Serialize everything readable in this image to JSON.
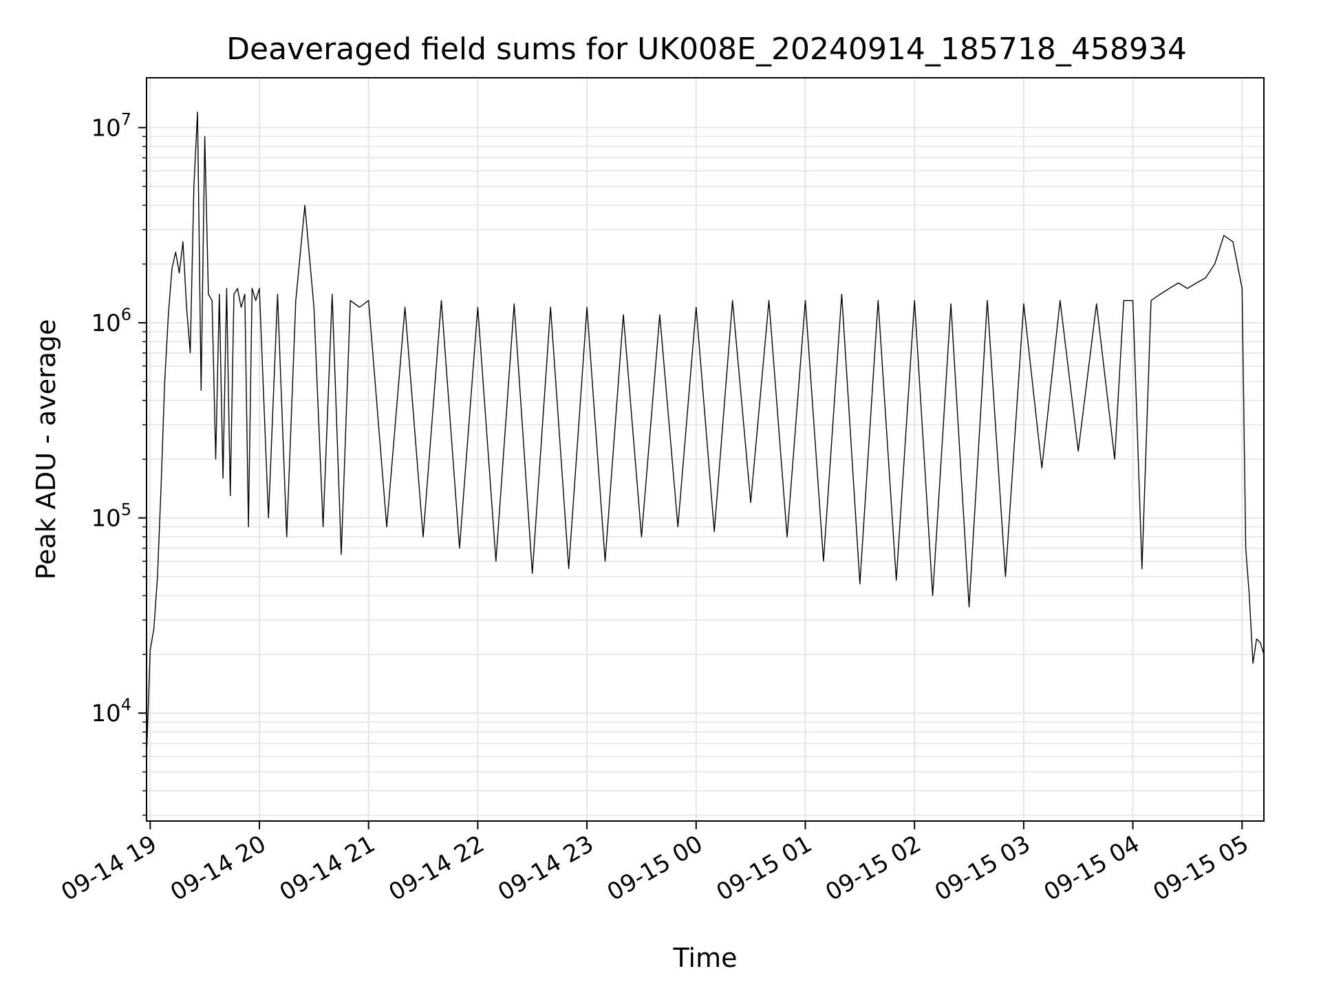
{
  "chart_data": {
    "type": "line",
    "title": "Deaveraged field sums for UK008E_20240914_185718_458934",
    "xlabel": "Time",
    "ylabel": "Peak ADU - average",
    "yscale": "log",
    "ylim": [
      2800,
      18000000
    ],
    "xlim": [
      "2024-09-14 18:58",
      "2024-09-15 05:12"
    ],
    "grid": true,
    "x_ticks": [
      {
        "label": "09-14 19",
        "time": "2024-09-14 19:00"
      },
      {
        "label": "09-14 20",
        "time": "2024-09-14 20:00"
      },
      {
        "label": "09-14 21",
        "time": "2024-09-14 21:00"
      },
      {
        "label": "09-14 22",
        "time": "2024-09-14 22:00"
      },
      {
        "label": "09-14 23",
        "time": "2024-09-14 23:00"
      },
      {
        "label": "09-15 00",
        "time": "2024-09-15 00:00"
      },
      {
        "label": "09-15 01",
        "time": "2024-09-15 01:00"
      },
      {
        "label": "09-15 02",
        "time": "2024-09-15 02:00"
      },
      {
        "label": "09-15 03",
        "time": "2024-09-15 03:00"
      },
      {
        "label": "09-15 04",
        "time": "2024-09-15 04:00"
      },
      {
        "label": "09-15 05",
        "time": "2024-09-15 05:00"
      }
    ],
    "y_ticks": [
      {
        "base": "10",
        "exp": "4",
        "value": 10000
      },
      {
        "base": "10",
        "exp": "5",
        "value": 100000
      },
      {
        "base": "10",
        "exp": "6",
        "value": 1000000
      },
      {
        "base": "10",
        "exp": "7",
        "value": 10000000
      }
    ],
    "series_color": "#000000",
    "series": [
      {
        "x": [
          "2024-09-14 18:58",
          "2024-09-14 19:00",
          "2024-09-14 19:02",
          "2024-09-14 19:04",
          "2024-09-14 19:06",
          "2024-09-14 19:08",
          "2024-09-14 19:10",
          "2024-09-14 19:12",
          "2024-09-14 19:14",
          "2024-09-14 19:16",
          "2024-09-14 19:18",
          "2024-09-14 19:20",
          "2024-09-14 19:22",
          "2024-09-14 19:24",
          "2024-09-14 19:26",
          "2024-09-14 19:28",
          "2024-09-14 19:30",
          "2024-09-14 19:32",
          "2024-09-14 19:34",
          "2024-09-14 19:36",
          "2024-09-14 19:38",
          "2024-09-14 19:40",
          "2024-09-14 19:42",
          "2024-09-14 19:44",
          "2024-09-14 19:46",
          "2024-09-14 19:48",
          "2024-09-14 19:50",
          "2024-09-14 19:52",
          "2024-09-14 19:54",
          "2024-09-14 19:56",
          "2024-09-14 19:58",
          "2024-09-14 20:00",
          "2024-09-14 20:05",
          "2024-09-14 20:10",
          "2024-09-14 20:15",
          "2024-09-14 20:20",
          "2024-09-14 20:25",
          "2024-09-14 20:30",
          "2024-09-14 20:35",
          "2024-09-14 20:40",
          "2024-09-14 20:45",
          "2024-09-14 20:50",
          "2024-09-14 20:55",
          "2024-09-14 21:00",
          "2024-09-14 21:10",
          "2024-09-14 21:20",
          "2024-09-14 21:30",
          "2024-09-14 21:40",
          "2024-09-14 21:50",
          "2024-09-14 22:00",
          "2024-09-14 22:10",
          "2024-09-14 22:20",
          "2024-09-14 22:30",
          "2024-09-14 22:40",
          "2024-09-14 22:50",
          "2024-09-14 23:00",
          "2024-09-14 23:10",
          "2024-09-14 23:20",
          "2024-09-14 23:30",
          "2024-09-14 23:40",
          "2024-09-14 23:50",
          "2024-09-15 00:00",
          "2024-09-15 00:10",
          "2024-09-15 00:20",
          "2024-09-15 00:30",
          "2024-09-15 00:40",
          "2024-09-15 00:50",
          "2024-09-15 01:00",
          "2024-09-15 01:10",
          "2024-09-15 01:20",
          "2024-09-15 01:30",
          "2024-09-15 01:40",
          "2024-09-15 01:50",
          "2024-09-15 02:00",
          "2024-09-15 02:10",
          "2024-09-15 02:20",
          "2024-09-15 02:30",
          "2024-09-15 02:40",
          "2024-09-15 02:50",
          "2024-09-15 03:00",
          "2024-09-15 03:10",
          "2024-09-15 03:20",
          "2024-09-15 03:30",
          "2024-09-15 03:40",
          "2024-09-15 03:50",
          "2024-09-15 03:55",
          "2024-09-15 04:00",
          "2024-09-15 04:05",
          "2024-09-15 04:10",
          "2024-09-15 04:15",
          "2024-09-15 04:20",
          "2024-09-15 04:25",
          "2024-09-15 04:30",
          "2024-09-15 04:35",
          "2024-09-15 04:40",
          "2024-09-15 04:45",
          "2024-09-15 04:50",
          "2024-09-15 04:55",
          "2024-09-15 05:00",
          "2024-09-15 05:02",
          "2024-09-15 05:04",
          "2024-09-15 05:06",
          "2024-09-15 05:08",
          "2024-09-15 05:10",
          "2024-09-15 05:12"
        ],
        "y": [
          6000,
          21000,
          27000,
          50000,
          148000,
          500000,
          1100000,
          1900000,
          2300000,
          1800000,
          2600000,
          1200000,
          700000,
          5000000,
          12000000,
          450000,
          9000000,
          1400000,
          1300000,
          200000,
          1400000,
          160000,
          1500000,
          130000,
          1400000,
          1500000,
          1200000,
          1400000,
          90000,
          1500000,
          1300000,
          1500000,
          100000,
          1400000,
          80000,
          1300000,
          4000000,
          1200000,
          90000,
          1400000,
          65000,
          1300000,
          1200000,
          1300000,
          90000,
          1200000,
          80000,
          1300000,
          70000,
          1200000,
          60000,
          1250000,
          52000,
          1200000,
          55000,
          1200000,
          60000,
          1100000,
          80000,
          1100000,
          90000,
          1200000,
          85000,
          1300000,
          120000,
          1300000,
          80000,
          1300000,
          60000,
          1400000,
          46000,
          1300000,
          48000,
          1300000,
          40000,
          1250000,
          35000,
          1300000,
          50000,
          1250000,
          180000,
          1300000,
          220000,
          1250000,
          200000,
          1300000,
          1300000,
          55000,
          1300000,
          1400000,
          1500000,
          1600000,
          1500000,
          1600000,
          1700000,
          2000000,
          2800000,
          2600000,
          1500000,
          70000,
          40000,
          18000,
          24000,
          23000,
          20000
        ]
      }
    ]
  }
}
